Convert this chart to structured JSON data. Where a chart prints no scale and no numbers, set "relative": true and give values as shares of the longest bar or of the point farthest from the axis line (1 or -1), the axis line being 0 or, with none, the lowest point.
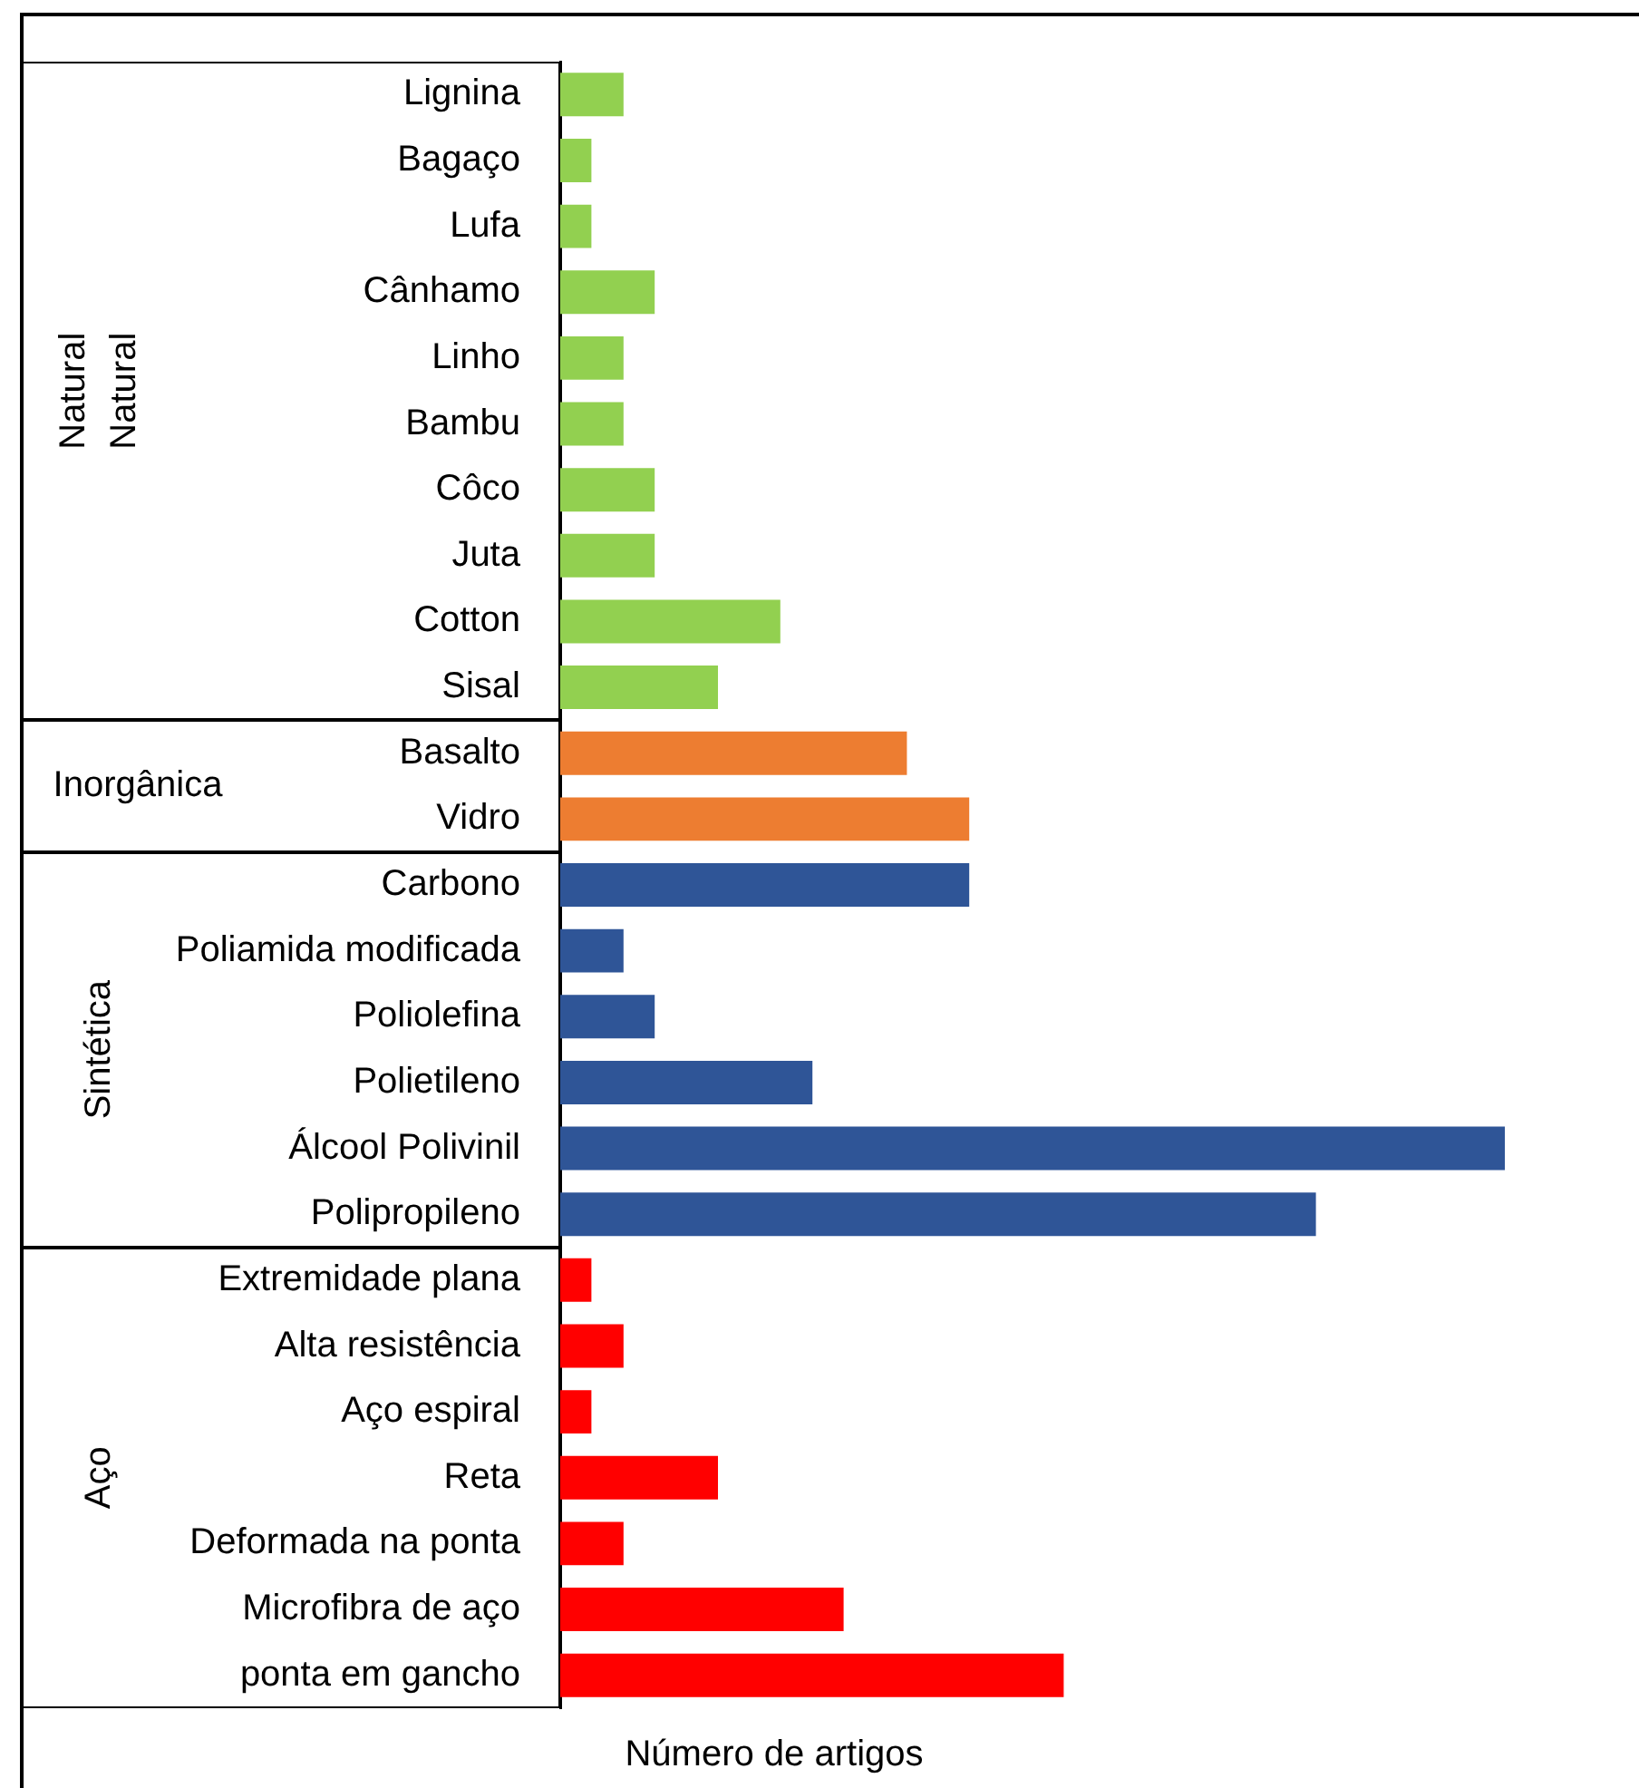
{
  "chart_data": {
    "type": "bar",
    "orientation": "horizontal",
    "relative": true,
    "xlabel": "Número de artigos",
    "categories": [
      "Lignina",
      "Bagaço",
      "Lufa",
      "Cânhamo",
      "Linho",
      "Bambu",
      "Côco",
      "Juta",
      "Cotton",
      "Sisal",
      "Basalto",
      "Vidro",
      "Carbono",
      "Poliamida modificada",
      "Poliolefina",
      "Polietileno",
      "Álcool Polivinil",
      "Polipropileno",
      "Extremidade plana",
      "Alta resistência",
      "Aço espiral",
      "Reta",
      "Deformada na ponta",
      "Microfibra de aço",
      "ponta em gancho"
    ],
    "annotations": [
      "Natural\nNatural",
      "Inorgânica",
      "Sintética",
      "Aço"
    ],
    "series": [
      {
        "color": "#92d050",
        "values": [
          0.067,
          0.033,
          0.033,
          0.1,
          0.067,
          0.067,
          0.1,
          0.1,
          0.233,
          0.167,
          null,
          null,
          null,
          null,
          null,
          null,
          null,
          null,
          null,
          null,
          null,
          null,
          null,
          null,
          null
        ]
      },
      {
        "color": "#ed7d31",
        "values": [
          null,
          null,
          null,
          null,
          null,
          null,
          null,
          null,
          null,
          null,
          0.367,
          0.433,
          null,
          null,
          null,
          null,
          null,
          null,
          null,
          null,
          null,
          null,
          null,
          null,
          null
        ]
      },
      {
        "color": "#2f5597",
        "values": [
          null,
          null,
          null,
          null,
          null,
          null,
          null,
          null,
          null,
          null,
          null,
          null,
          0.433,
          0.067,
          0.1,
          0.267,
          1,
          0.8,
          null,
          null,
          null,
          null,
          null,
          null,
          null
        ]
      },
      {
        "color": "#ff0000",
        "values": [
          null,
          null,
          null,
          null,
          null,
          null,
          null,
          null,
          null,
          null,
          null,
          null,
          null,
          null,
          null,
          null,
          null,
          null,
          0.033,
          0.067,
          0.033,
          0.167,
          0.067,
          0.3,
          0.533
        ]
      }
    ]
  }
}
